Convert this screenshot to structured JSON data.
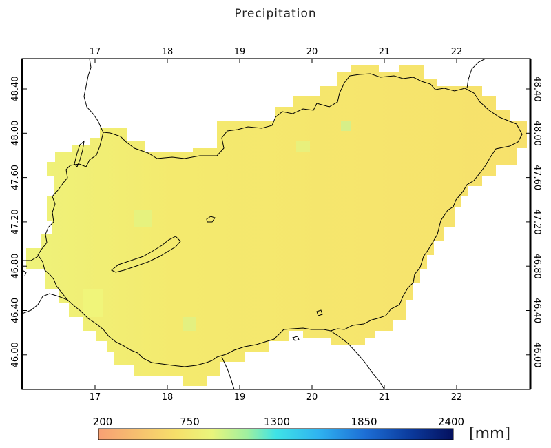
{
  "title": "Precipitation",
  "map": {
    "lon_ticks": [
      "17",
      "18",
      "19",
      "20",
      "21",
      "22"
    ],
    "lat_ticks": [
      "48.40",
      "48.00",
      "47.60",
      "47.20",
      "46.80",
      "46.40",
      "46.00"
    ],
    "region": "Hungary",
    "field_color_dominant": "#f5e26a",
    "field_color_west": "#eef27a",
    "border_color": "#000000"
  },
  "colorbar": {
    "tick_labels": [
      "200",
      "750",
      "1300",
      "1850",
      "2400"
    ],
    "unit": "[mm]",
    "stops": [
      "#f7a074",
      "#f6e06a",
      "#e9f57c",
      "#9ef0a0",
      "#3fe3e6",
      "#2fb3f0",
      "#1d6fd6",
      "#0b3a9c",
      "#04105e"
    ]
  }
}
